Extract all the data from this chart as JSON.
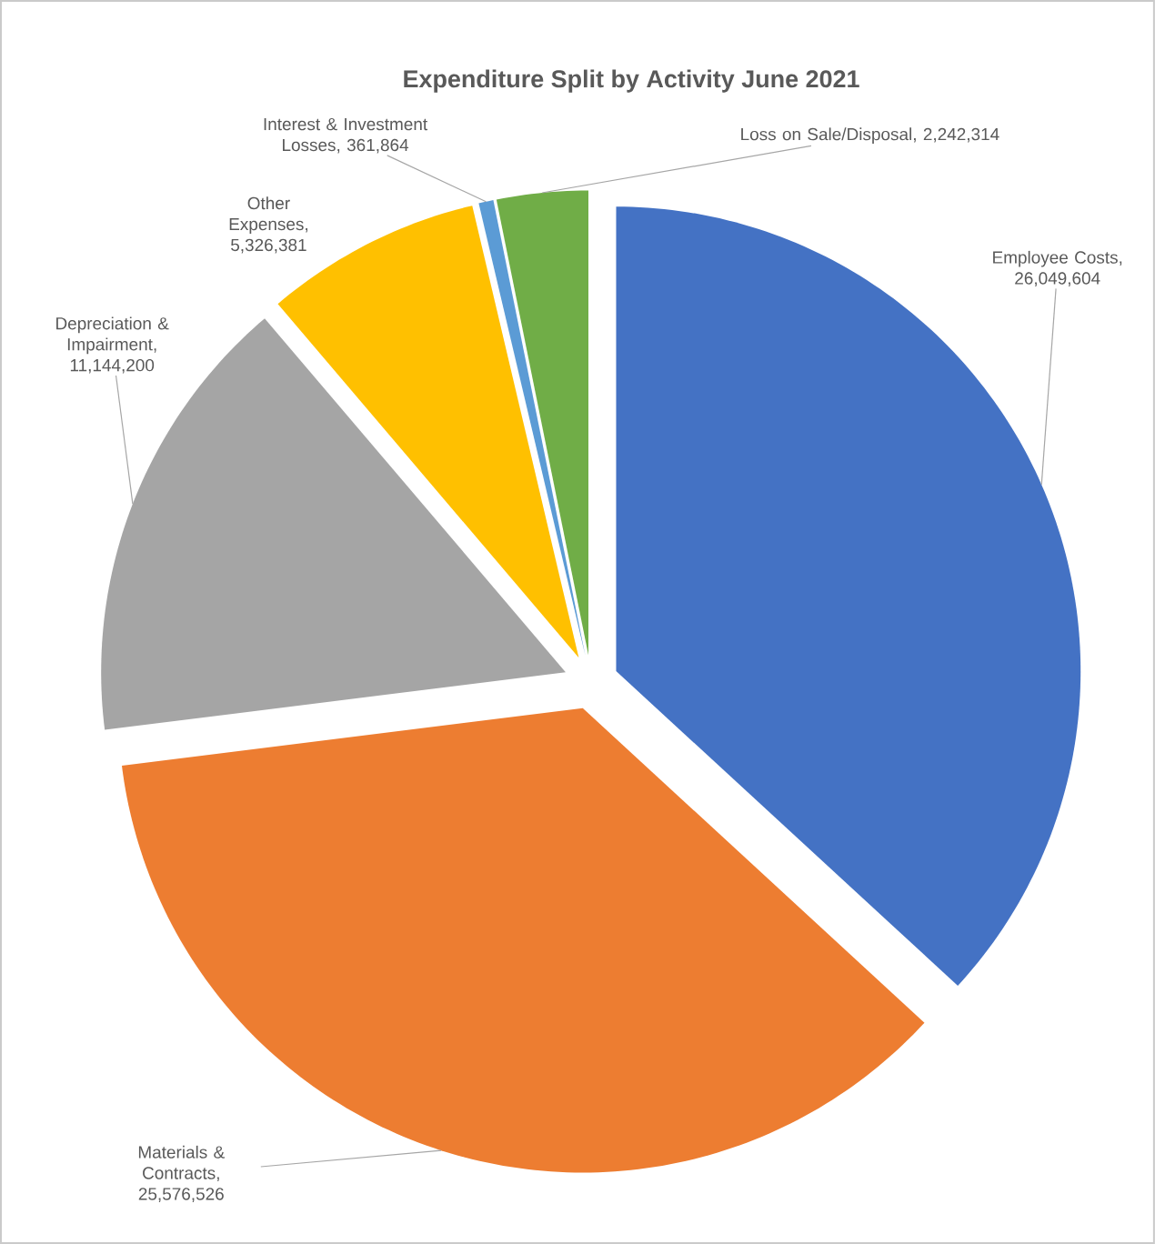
{
  "chart_data": {
    "type": "pie",
    "title": "Expenditure Split by Activity June 2021",
    "categories": [
      "Employee Costs",
      "Materials & Contracts",
      "Depreciation & Impairment",
      "Other Expenses",
      "Interest & Investment Losses",
      "Loss on Sale/Disposal"
    ],
    "values": [
      26049604,
      25576526,
      11144200,
      5326381,
      361864,
      2242314
    ],
    "value_labels": [
      ", 26,049,604",
      ", 25,576,526",
      ", 11,144,200",
      ", 5,326,381",
      ", 361,864",
      ", 2,242,314"
    ],
    "colors": [
      "#4472c4",
      "#ed7d31",
      "#a5a5a5",
      "#ffc000",
      "#5b9bd5",
      "#70ad47"
    ]
  }
}
